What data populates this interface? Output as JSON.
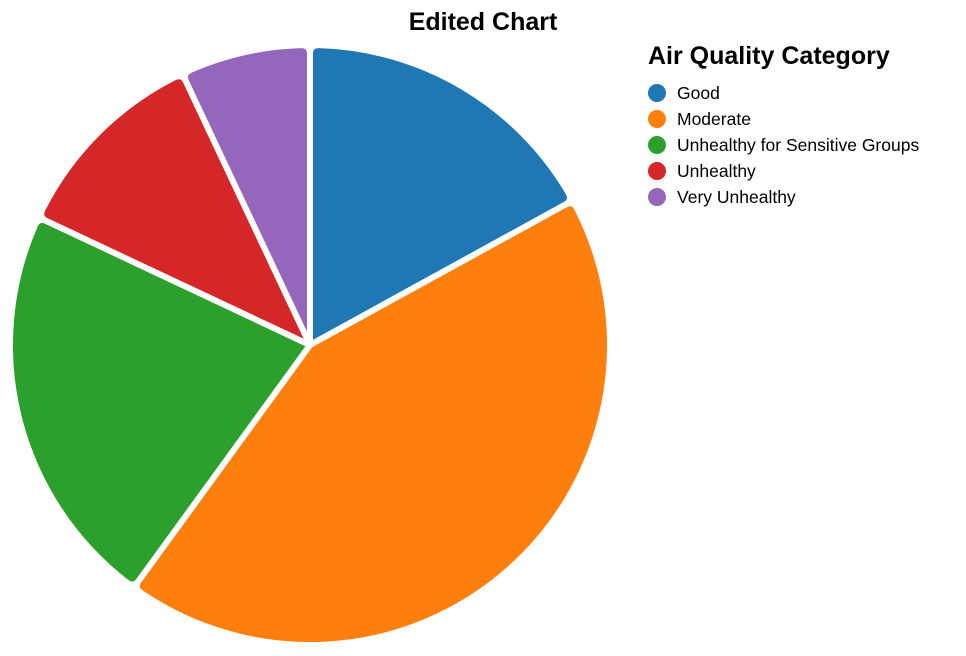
{
  "chart_data": {
    "type": "pie",
    "title": "Edited Chart",
    "legend_title": "Air Quality Category",
    "legend_position": "top-right",
    "categories": [
      "Good",
      "Moderate",
      "Unhealthy for Sensitive Groups",
      "Unhealthy",
      "Very Unhealthy"
    ],
    "values": [
      17,
      43,
      22,
      11,
      7
    ],
    "colors": [
      "#1f77b4",
      "#ff7f0e",
      "#2ca02c",
      "#d62728",
      "#9467bd"
    ]
  }
}
